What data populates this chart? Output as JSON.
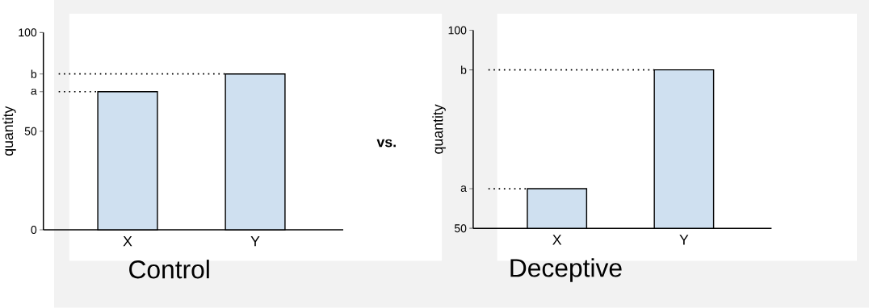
{
  "chart_data": [
    {
      "type": "bar",
      "title": "Control",
      "ylabel": "quantity",
      "categories": [
        "X",
        "Y"
      ],
      "values": [
        70,
        79
      ],
      "color": "#cfe0f0",
      "ylim": [
        0,
        100
      ],
      "yticks": [
        0,
        50,
        {
          "value": 70,
          "label": "a"
        },
        {
          "value": 79,
          "label": "b"
        },
        100
      ],
      "ref_lines": [
        {
          "axis": "y",
          "value": 70,
          "line_style": "dotted"
        },
        {
          "axis": "y",
          "value": 79,
          "line_style": "dotted"
        }
      ]
    },
    {
      "type": "bar",
      "title": "Deceptive",
      "ylabel": "quantity",
      "categories": [
        "X",
        "Y"
      ],
      "values": [
        60,
        90
      ],
      "color": "#cfe0f0",
      "ylim": [
        50,
        100
      ],
      "yticks": [
        50,
        {
          "value": 60,
          "label": "a"
        },
        {
          "value": 90,
          "label": "b"
        },
        100
      ],
      "ref_lines": [
        {
          "axis": "y",
          "value": 60,
          "line_style": "dotted"
        },
        {
          "axis": "y",
          "value": 90,
          "line_style": "dotted"
        }
      ],
      "annotations": [
        "vs."
      ]
    }
  ]
}
